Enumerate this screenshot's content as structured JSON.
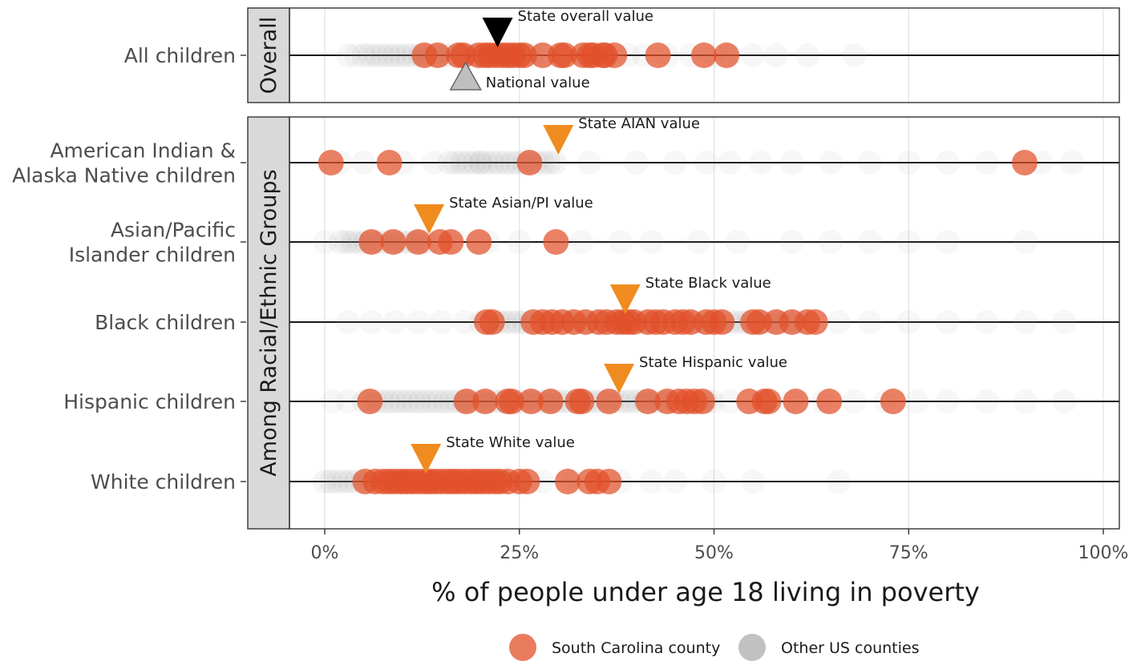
{
  "chart_data": {
    "type": "scatter",
    "xlabel": "% of people under age 18 living in poverty",
    "xlim": [
      0,
      100
    ],
    "x_ticks": [
      0,
      25,
      50,
      75,
      100
    ],
    "x_tick_labels": [
      "0%",
      "25%",
      "50%",
      "75%",
      "100%"
    ],
    "grid": "vertical",
    "panels": [
      {
        "strip_label": "Overall",
        "rows": [
          {
            "label_lines": [
              "All children"
            ],
            "sc_counties": [
              12.8,
              14.5,
              17.2,
              17.8,
              19.8,
              20.6,
              21.2,
              22.0,
              22.8,
              23.5,
              24.2,
              25.0,
              25.6,
              28.0,
              30.3,
              30.8,
              33.2,
              34.0,
              34.5,
              35.7,
              36.0,
              37.2,
              42.8,
              48.7,
              51.6
            ],
            "other_counties": {
              "dense_from": 5,
              "dense_to": 27,
              "sparse": [
                3,
                4,
                28,
                30,
                33,
                36,
                39,
                41,
                44,
                47,
                50,
                52,
                55,
                58,
                62,
                68
              ]
            },
            "state_marker": {
              "value": 22.2,
              "label": "State overall value",
              "color": "#000000"
            },
            "national_marker": {
              "value": 18.1,
              "label": "National value",
              "color": "#bfbfbf"
            }
          }
        ]
      },
      {
        "strip_label": "Among Racial/Ethnic Groups",
        "rows": [
          {
            "label_lines": [
              "American Indian &",
              "Alaska Native children"
            ],
            "sc_counties": [
              0.8,
              8.3,
              26.3,
              89.9
            ],
            "other_counties": {
              "dense_from": 16,
              "dense_to": 30,
              "sparse": [
                2,
                5,
                10,
                14,
                20,
                34,
                40,
                45,
                49,
                52,
                56,
                60,
                65,
                70,
                75,
                80,
                85,
                92,
                96
              ]
            },
            "state_marker": {
              "value": 30.0,
              "label": "State AIAN value",
              "color": "#f08c1f"
            }
          },
          {
            "label_lines": [
              "Asian/Pacific",
              "Islander children"
            ],
            "sc_counties": [
              6.0,
              8.8,
              12.0,
              14.8,
              16.2,
              19.8,
              29.7
            ],
            "other_counties": {
              "dense_from": 2,
              "dense_to": 14,
              "sparse": [
                0,
                17,
                21,
                25,
                33,
                38,
                42,
                48,
                53,
                60,
                65,
                70,
                75,
                80,
                90
              ]
            },
            "state_marker": {
              "value": 13.4,
              "label": "State Asian/PI value",
              "color": "#f08c1f"
            }
          },
          {
            "label_lines": [
              "Black children"
            ],
            "sc_counties": [
              20.8,
              21.5,
              26.8,
              28.0,
              29.2,
              30.5,
              32.0,
              33.5,
              35.2,
              36.2,
              37.5,
              38.3,
              39.0,
              39.7,
              41.5,
              42.5,
              43.5,
              45.0,
              46.0,
              47.0,
              49.0,
              50.0,
              51.0,
              55.0,
              55.8,
              58.0,
              60.0,
              62.0,
              63.0
            ],
            "other_counties": {
              "dense_from": 20,
              "dense_to": 62,
              "sparse": [
                3,
                6,
                9,
                12,
                15,
                18,
                66,
                70,
                75,
                80,
                85,
                90,
                95
              ]
            },
            "state_marker": {
              "value": 38.6,
              "label": "State Black value",
              "color": "#f08c1f"
            }
          },
          {
            "label_lines": [
              "Hispanic children"
            ],
            "sc_counties": [
              5.8,
              18.2,
              20.6,
              23.5,
              24.0,
              26.5,
              29.0,
              32.5,
              33.0,
              36.5,
              41.5,
              44.0,
              45.5,
              46.5,
              47.5,
              48.5,
              54.5,
              56.5,
              57.0,
              60.5,
              64.8,
              73.0
            ],
            "other_counties": {
              "dense_from": 5,
              "dense_to": 50,
              "sparse": [
                1,
                3,
                52,
                56,
                60,
                64,
                68,
                72,
                76,
                80,
                85,
                90,
                95
              ]
            },
            "state_marker": {
              "value": 37.8,
              "label": "State Hispanic value",
              "color": "#f08c1f"
            }
          },
          {
            "label_lines": [
              "White children"
            ],
            "sc_counties": [
              5.2,
              6.5,
              7.5,
              8.3,
              9.0,
              9.8,
              10.5,
              11.2,
              12.0,
              12.8,
              13.5,
              14.2,
              15.0,
              15.8,
              16.5,
              17.2,
              18.0,
              18.8,
              19.5,
              20.2,
              21.0,
              21.8,
              22.5,
              23.5,
              25.0,
              26.0,
              31.2,
              34.0,
              35.0,
              36.5
            ],
            "other_counties": {
              "dense_from": 0,
              "dense_to": 23,
              "sparse": [
                25,
                28,
                32,
                38,
                42,
                45,
                50,
                55,
                66
              ]
            },
            "state_marker": {
              "value": 13.0,
              "label": "State White value",
              "color": "#f08c1f"
            }
          }
        ]
      }
    ],
    "legend": {
      "position": "bottom",
      "items": [
        {
          "label": "South Carolina county",
          "color": "#e2502a"
        },
        {
          "label": "Other US counties",
          "color": "#a6a6a6"
        }
      ]
    }
  }
}
